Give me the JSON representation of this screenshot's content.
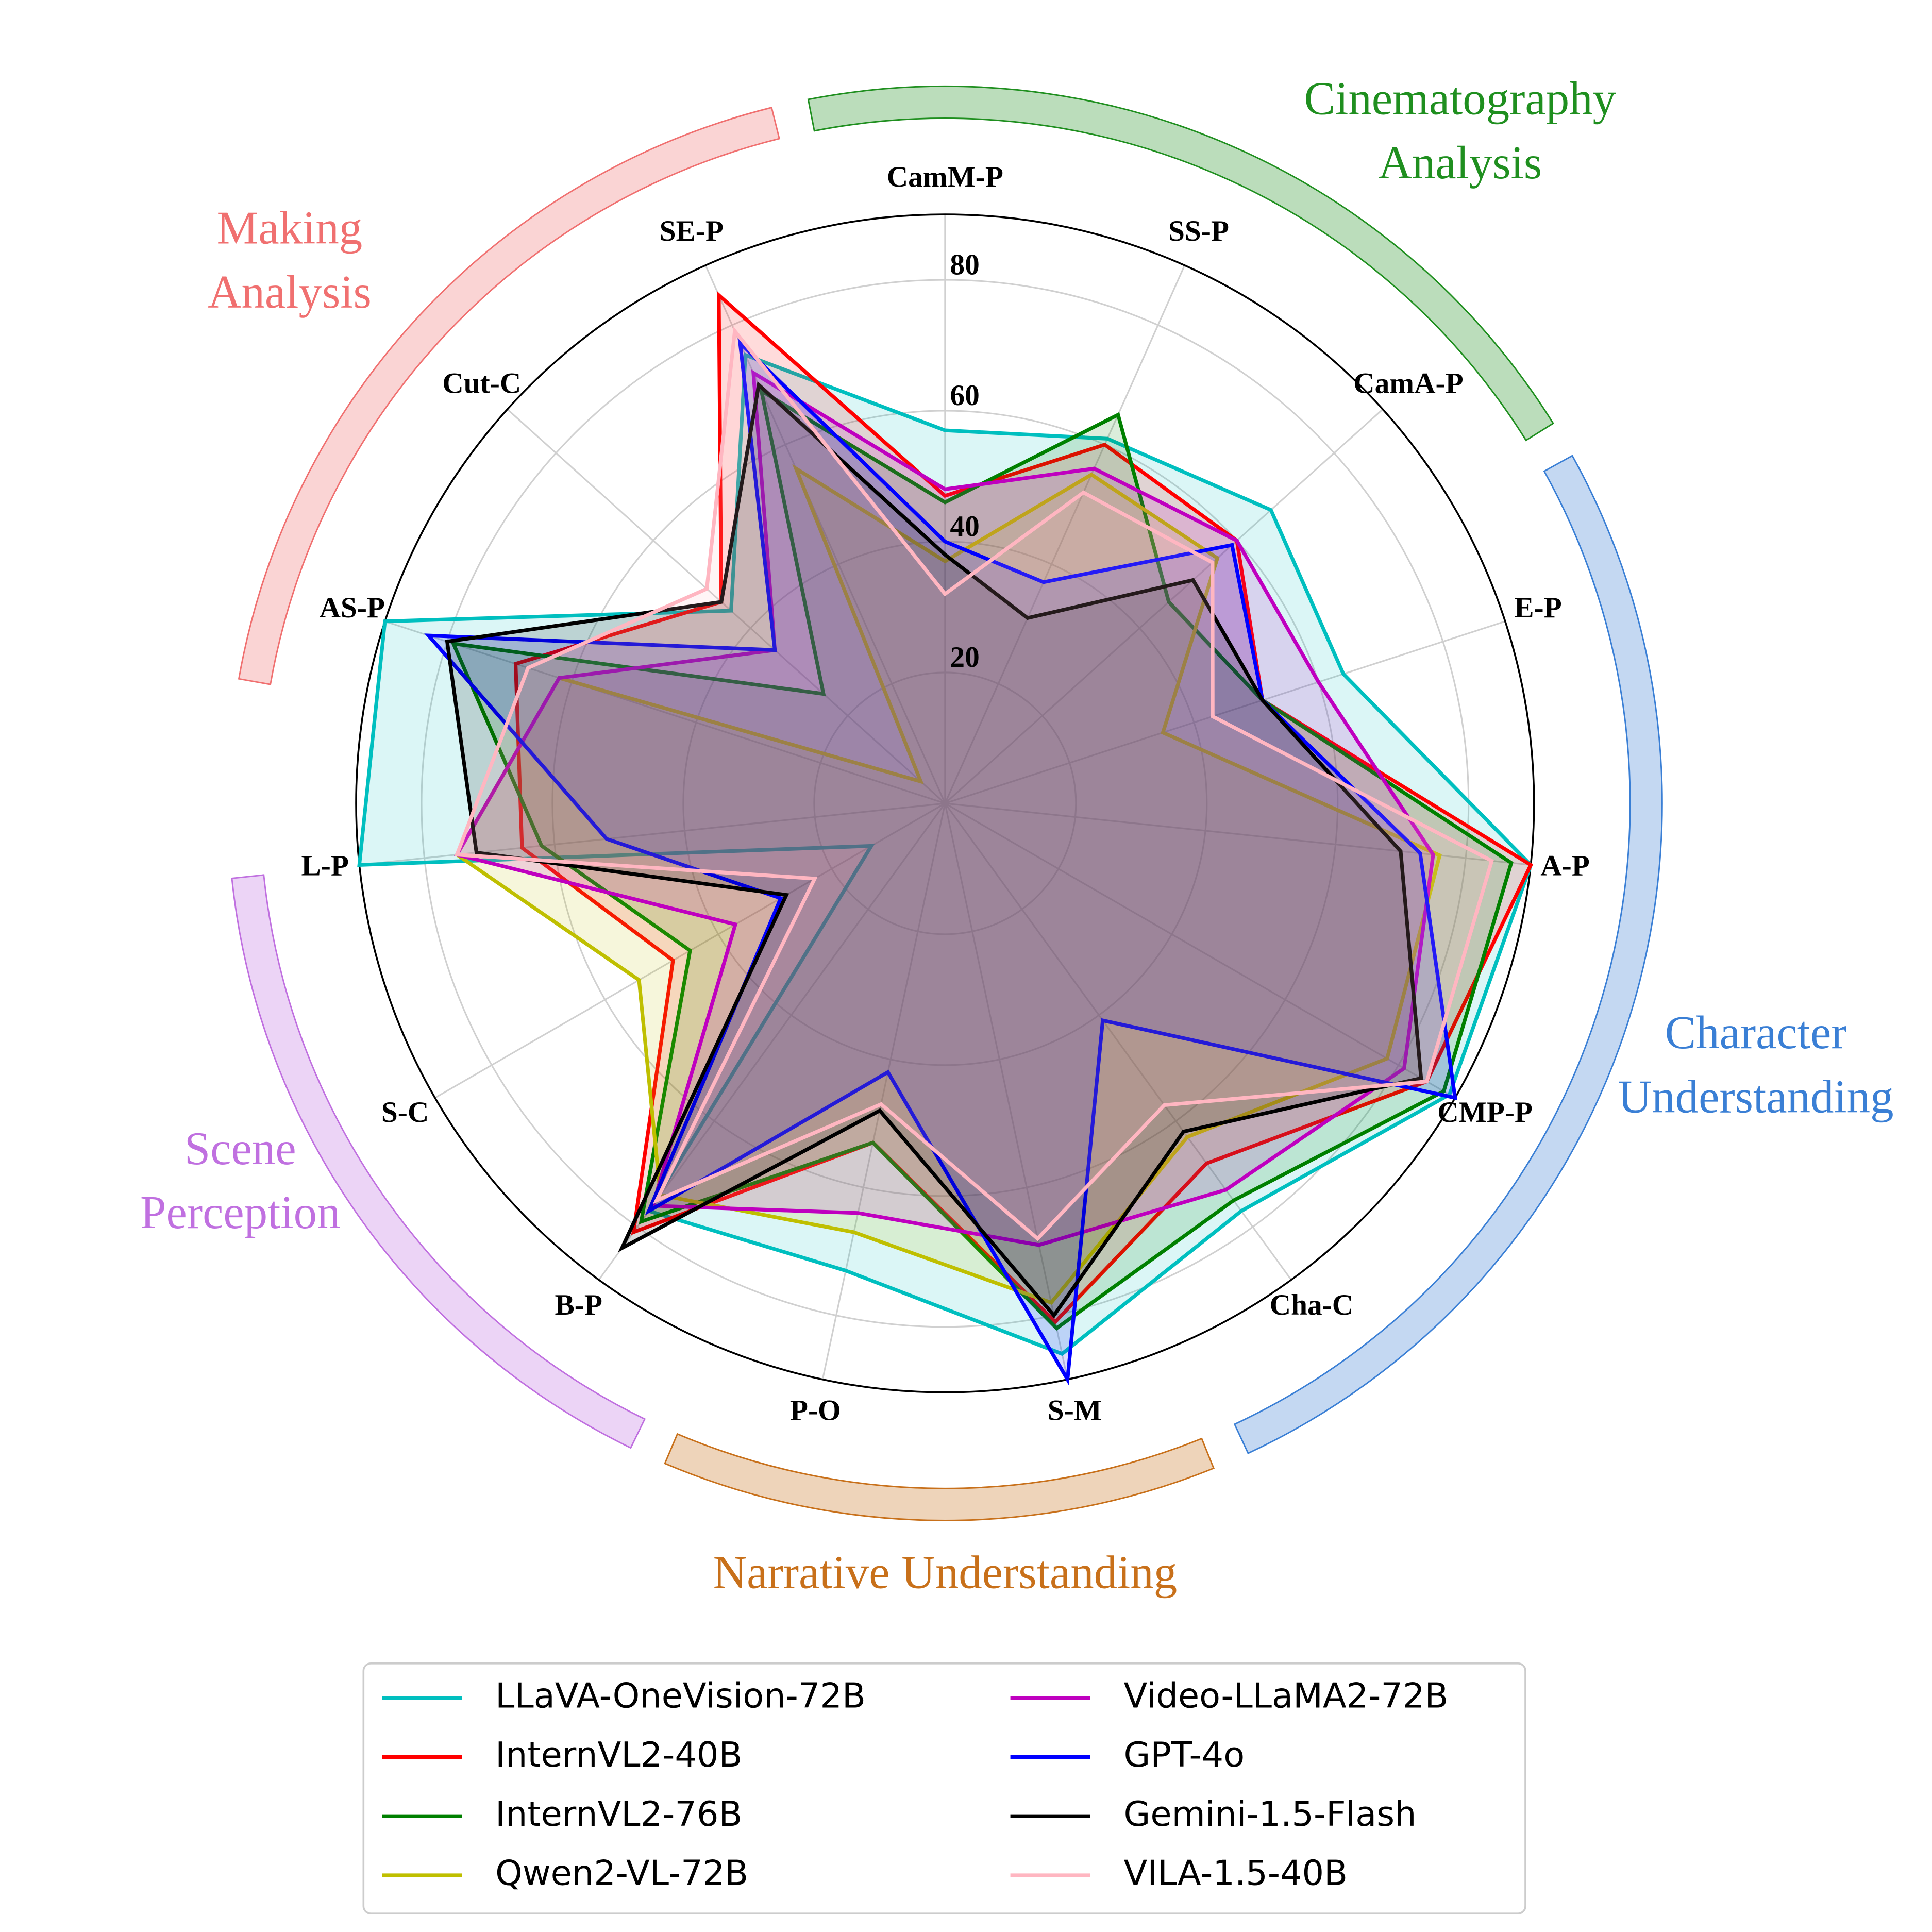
{
  "chart_data": {
    "type": "radar",
    "categories": [
      "CamM-P",
      "SS-P",
      "CamA-P",
      "E-P",
      "A-P",
      "CMP-P",
      "Cha-C",
      "S-M",
      "P-O",
      "B-P",
      "S-C",
      "L-P",
      "AS-P",
      "Cut-C",
      "SE-P"
    ],
    "ylim": [
      0,
      90
    ],
    "yticks": [
      20,
      40,
      60,
      80
    ],
    "grid": true,
    "legend": "lower center",
    "series": [
      {
        "name": "LLaVA-OneVision-72B",
        "color": "#00bfbf",
        "values": [
          57,
          61,
          67,
          64,
          90,
          89,
          77,
          86,
          73,
          77,
          13,
          90,
          90,
          44,
          75
        ]
      },
      {
        "name": "InternVL2-40B",
        "color": "#ff0000",
        "values": [
          47,
          60,
          60,
          51,
          90,
          85,
          68,
          81,
          53,
          81,
          48,
          65,
          69,
          46,
          85
        ]
      },
      {
        "name": "InternVL2-76B",
        "color": "#008000",
        "values": [
          46,
          65,
          46,
          51,
          87,
          88,
          75,
          82,
          53,
          79,
          45,
          62,
          79,
          25,
          69
        ]
      },
      {
        "name": "Qwen2-VL-72B",
        "color": "#bfbf00",
        "values": [
          37,
          55,
          56,
          35,
          76,
          78,
          63,
          78,
          67,
          74,
          54,
          75,
          62,
          5,
          56
        ]
      },
      {
        "name": "Video-LLaMA2-72B",
        "color": "#bf00bf",
        "values": [
          48,
          56,
          60,
          60,
          75,
          81,
          73,
          69,
          64,
          76,
          37,
          75,
          62,
          35,
          72
        ]
      },
      {
        "name": "GPT-4o",
        "color": "#0000ff",
        "values": [
          40,
          37,
          59,
          51,
          73,
          90,
          41,
          90,
          42,
          77,
          29,
          52,
          83,
          35,
          77
        ]
      },
      {
        "name": "Gemini-1.5-Flash",
        "color": "#000000",
        "values": [
          38,
          31,
          51,
          51,
          70,
          84,
          62,
          80,
          48,
          84,
          28,
          72,
          80,
          46,
          70
        ]
      },
      {
        "name": "VILA-1.5-40B",
        "color": "#ffb6c1",
        "values": [
          32,
          52,
          55,
          43,
          84,
          85,
          57,
          68,
          47,
          75,
          23,
          75,
          67,
          49,
          79
        ]
      }
    ],
    "groups": [
      {
        "label": [
          "Making",
          "Analysis"
        ],
        "color": "#f07070"
      },
      {
        "label": [
          "Cinematography",
          "Analysis"
        ],
        "color": "#1f8f1f"
      },
      {
        "label": [
          "Character",
          "Understanding"
        ],
        "color": "#3a7fd5"
      },
      {
        "label": [
          "Narrative Understanding"
        ],
        "color": "#c8701a"
      },
      {
        "label": [
          "Scene",
          "Perception"
        ],
        "color": "#c070e0"
      }
    ]
  }
}
